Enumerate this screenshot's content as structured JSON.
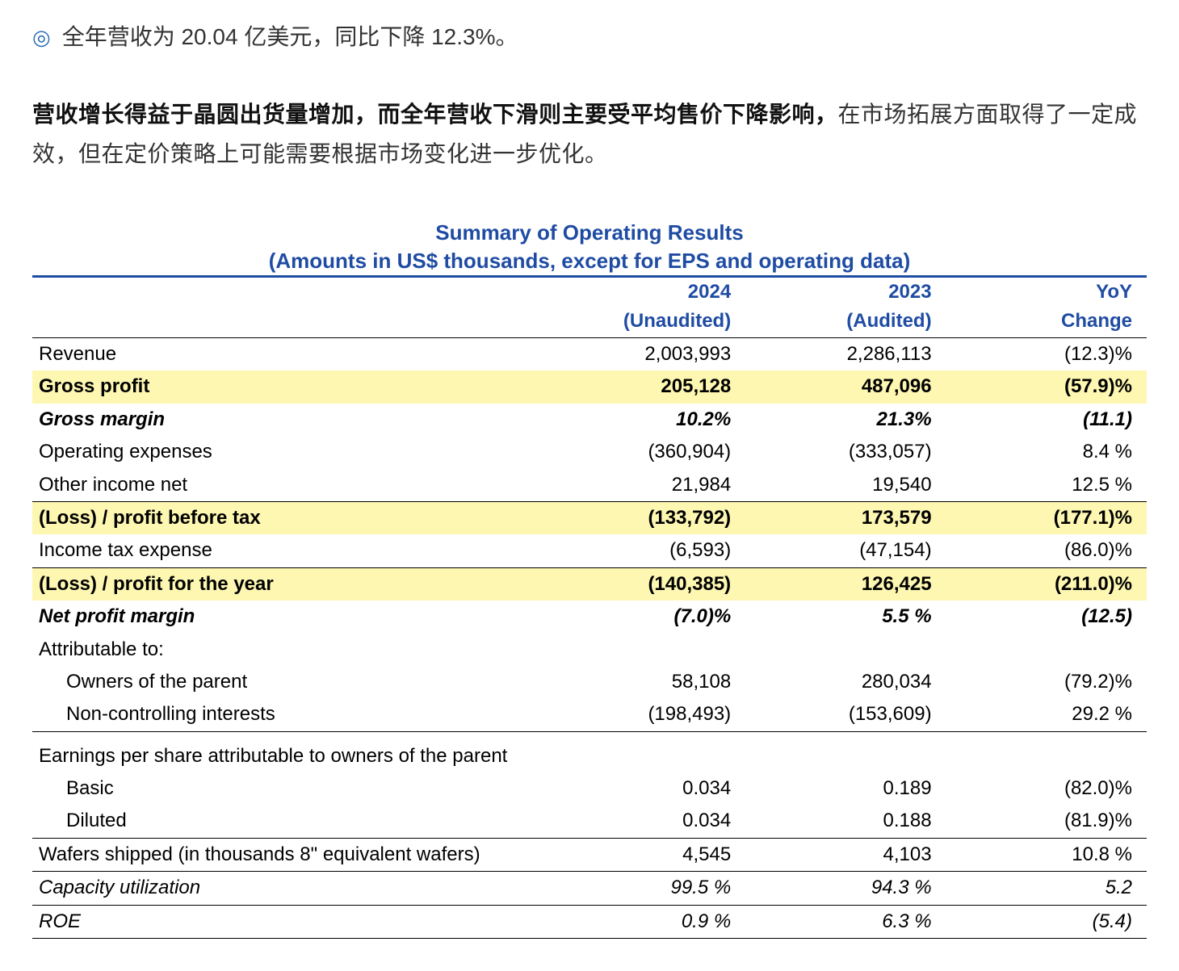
{
  "colors": {
    "title_blue": "#1f4ca3",
    "bullet_blue": "#2d6fb5",
    "highlight_bg": "#fdf7b2",
    "text": "#333333",
    "black": "#000000"
  },
  "bullet": {
    "icon": "◎",
    "text": "全年营收为 20.04 亿美元，同比下降 12.3%。"
  },
  "paragraph": {
    "bold": "营收增长得益于晶圆出货量增加，而全年营收下滑则主要受平均售价下降影响，",
    "rest": "在市场拓展方面取得了一定成效，但在定价策略上可能需要根据市场变化进一步优化。"
  },
  "table": {
    "title_line1": "Summary of Operating Results",
    "title_line2": "(Amounts in US$ thousands, except for EPS and operating data)",
    "header": {
      "col1_top": "",
      "col1_bot": "",
      "col2_top": "2024",
      "col2_bot": "(Unaudited)",
      "col3_top": "2023",
      "col3_bot": "(Audited)",
      "col4_top": "YoY",
      "col4_bot": "Change"
    },
    "rows": {
      "revenue": {
        "label": "Revenue",
        "v1": "2,003,993",
        "v2": "2,286,113",
        "chg": "(12.3)%"
      },
      "gross_profit": {
        "label": "Gross profit",
        "v1": "205,128",
        "v2": "487,096",
        "chg": "(57.9)%"
      },
      "gross_margin": {
        "label": "Gross margin",
        "v1": "10.2%",
        "v2": "21.3%",
        "chg": "(11.1)"
      },
      "opex": {
        "label": "Operating expenses",
        "v1": "(360,904)",
        "v2": "(333,057)",
        "chg": "8.4 %"
      },
      "other_income": {
        "label": "Other income net",
        "v1": "21,984",
        "v2": "19,540",
        "chg": "12.5 %"
      },
      "pbt": {
        "label": "(Loss) / profit before tax",
        "v1": "(133,792)",
        "v2": "173,579",
        "chg": "(177.1)%"
      },
      "tax": {
        "label": "Income tax expense",
        "v1": "(6,593)",
        "v2": "(47,154)",
        "chg": "(86.0)%"
      },
      "net_profit": {
        "label": "(Loss) / profit for the year",
        "v1": "(140,385)",
        "v2": "126,425",
        "chg": "(211.0)%"
      },
      "net_margin": {
        "label": "Net profit margin",
        "v1": "(7.0)%",
        "v2": "5.5 %",
        "chg": "(12.5)"
      },
      "attributable": {
        "label": "Attributable to:"
      },
      "owners": {
        "label": "Owners of the parent",
        "v1": "58,108",
        "v2": "280,034",
        "chg": "(79.2)%"
      },
      "nci": {
        "label": "Non-controlling interests",
        "v1": "(198,493)",
        "v2": "(153,609)",
        "chg": "29.2 %"
      },
      "eps_header": {
        "label": "Earnings per share attributable to owners of the parent"
      },
      "eps_basic": {
        "label": "Basic",
        "v1": "0.034",
        "v2": "0.189",
        "chg": "(82.0)%"
      },
      "eps_diluted": {
        "label": "Diluted",
        "v1": "0.034",
        "v2": "0.188",
        "chg": "(81.9)%"
      },
      "wafers": {
        "label": "Wafers shipped (in thousands 8\" equivalent wafers)",
        "v1": "4,545",
        "v2": "4,103",
        "chg": "10.8 %"
      },
      "capacity": {
        "label": "Capacity utilization",
        "v1": "99.5 %",
        "v2": "94.3 %",
        "chg": "5.2"
      },
      "roe": {
        "label": "ROE",
        "v1": "0.9 %",
        "v2": "6.3 %",
        "chg": "(5.4)"
      }
    }
  }
}
